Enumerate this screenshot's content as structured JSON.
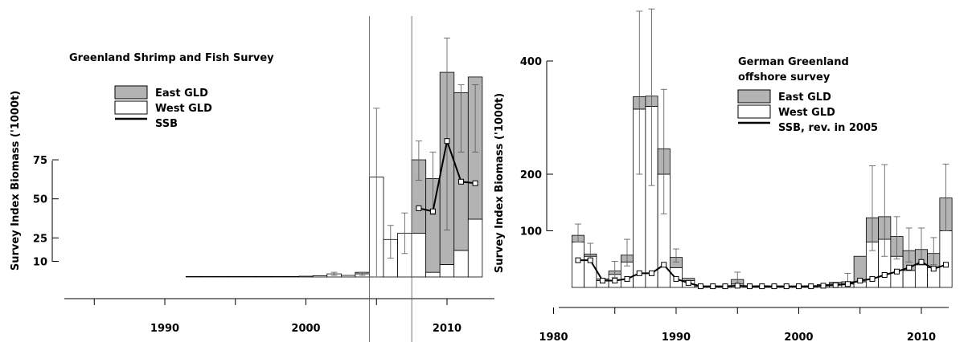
{
  "chart_data": [
    {
      "type": "bar",
      "stacked": true,
      "title": "Greenland Shrimp and Fish Survey",
      "ylabel": "Survey Index Biomass ('1000t)",
      "xlabel": "",
      "y_ticks": [
        10,
        25,
        50,
        75
      ],
      "x_ticks": [
        1990,
        2000,
        2010
      ],
      "xlim": [
        1983,
        2013
      ],
      "ylim": [
        0,
        140
      ],
      "legend": {
        "placement": "top-left",
        "entries": [
          {
            "label": "East GLD",
            "color": "#b3b3b3",
            "kind": "box"
          },
          {
            "label": "West GLD",
            "color": "#ffffff",
            "kind": "box"
          },
          {
            "label": "SSB",
            "color": "#000000",
            "kind": "line"
          }
        ]
      },
      "years": [
        1992,
        1993,
        1994,
        1995,
        1996,
        1997,
        1998,
        1999,
        2000,
        2001,
        2002,
        2003,
        2004,
        2005,
        2006,
        2007,
        2008,
        2009,
        2010,
        2011,
        2012
      ],
      "series": [
        {
          "name": "West GLD",
          "values": [
            0.3,
            0.3,
            0.3,
            0.3,
            0.3,
            0.3,
            0.3,
            0.3,
            0.5,
            0.8,
            2,
            1,
            2,
            64,
            24,
            28,
            28,
            3,
            8,
            17,
            37
          ]
        },
        {
          "name": "East GLD",
          "values": [
            0,
            0,
            0,
            0,
            0,
            0,
            0,
            0,
            0,
            0,
            0,
            0,
            1,
            0,
            0,
            0,
            47,
            60,
            123,
            101,
            91
          ]
        }
      ],
      "error_bars": [
        {
          "year": 2002,
          "low": 1,
          "high": 3
        },
        {
          "year": 2004,
          "low": 1,
          "high": 3
        },
        {
          "year": 2005,
          "low": 0,
          "high": 108
        },
        {
          "year": 2006,
          "low": 12,
          "high": 33
        },
        {
          "year": 2007,
          "low": 15,
          "high": 41
        },
        {
          "year": 2008,
          "low": 62,
          "high": 87
        },
        {
          "year": 2009,
          "low": 40,
          "high": 80
        },
        {
          "year": 2010,
          "low": 30,
          "high": 153
        },
        {
          "year": 2011,
          "low": 80,
          "high": 123
        },
        {
          "year": 2012,
          "low": 80,
          "high": 123
        }
      ],
      "ssb": {
        "x": [
          2008,
          2009,
          2010,
          2011,
          2012
        ],
        "y": [
          44,
          42,
          87,
          61,
          60
        ]
      },
      "ref_lines_x": [
        2004.5,
        2007.5
      ]
    },
    {
      "type": "bar",
      "stacked": true,
      "title": "German Greenland offshore survey",
      "title_lines": [
        "German Greenland",
        "offshore survey"
      ],
      "ylabel": "Survey Index Biomass ('1000t)",
      "xlabel": "",
      "y_ticks": [
        100,
        200,
        400
      ],
      "x_ticks": [
        1980,
        1990,
        2000,
        2010
      ],
      "xlim": [
        1980,
        2013
      ],
      "ylim": [
        0,
        450
      ],
      "legend": {
        "placement": "top-right",
        "entries": [
          {
            "label": "East GLD",
            "color": "#b3b3b3",
            "kind": "box"
          },
          {
            "label": "West GLD",
            "color": "#ffffff",
            "kind": "box"
          },
          {
            "label": "SSB, rev. in 2005",
            "color": "#000000",
            "kind": "line"
          }
        ]
      },
      "years": [
        1982,
        1983,
        1984,
        1985,
        1986,
        1987,
        1988,
        1989,
        1990,
        1991,
        1992,
        1993,
        1994,
        1995,
        1996,
        1997,
        1998,
        1999,
        2000,
        2001,
        2002,
        2003,
        2004,
        2005,
        2006,
        2007,
        2008,
        2009,
        2010,
        2011,
        2012
      ],
      "series": [
        {
          "name": "West GLD",
          "values": [
            80,
            55,
            12,
            23,
            45,
            315,
            320,
            200,
            35,
            12,
            2,
            2,
            2,
            6,
            2,
            3,
            2,
            2,
            2,
            3,
            3,
            6,
            6,
            10,
            80,
            85,
            55,
            30,
            40,
            35,
            100
          ]
        },
        {
          "name": "East GLD",
          "values": [
            12,
            4,
            3,
            6,
            12,
            22,
            18,
            45,
            18,
            4,
            0,
            0,
            0,
            8,
            0,
            0,
            0,
            0,
            0,
            0,
            2,
            3,
            4,
            45,
            43,
            40,
            35,
            35,
            27,
            25,
            58
          ]
        }
      ],
      "error_bars": [
        {
          "year": 1982,
          "low": 80,
          "high": 112
        },
        {
          "year": 1983,
          "low": 50,
          "high": 78
        },
        {
          "year": 1985,
          "low": 18,
          "high": 46
        },
        {
          "year": 1986,
          "low": 38,
          "high": 85
        },
        {
          "year": 1987,
          "low": 200,
          "high": 488
        },
        {
          "year": 1988,
          "low": 180,
          "high": 492
        },
        {
          "year": 1989,
          "low": 130,
          "high": 350
        },
        {
          "year": 1990,
          "low": 45,
          "high": 68
        },
        {
          "year": 1995,
          "low": 3,
          "high": 27
        },
        {
          "year": 2004,
          "low": 3,
          "high": 25
        },
        {
          "year": 2006,
          "low": 65,
          "high": 215
        },
        {
          "year": 2007,
          "low": 55,
          "high": 217
        },
        {
          "year": 2008,
          "low": 50,
          "high": 125
        },
        {
          "year": 2009,
          "low": 45,
          "high": 105
        },
        {
          "year": 2010,
          "low": 40,
          "high": 105
        },
        {
          "year": 2011,
          "low": 40,
          "high": 88
        },
        {
          "year": 2012,
          "low": 100,
          "high": 218
        }
      ],
      "ssb": {
        "x": [
          1982,
          1983,
          1984,
          1985,
          1986,
          1987,
          1988,
          1989,
          1990,
          1991,
          1992,
          1993,
          1994,
          1995,
          1996,
          1997,
          1998,
          1999,
          2000,
          2001,
          2002,
          2003,
          2004,
          2005,
          2006,
          2007,
          2008,
          2009,
          2010,
          2011,
          2012
        ],
        "y": [
          48,
          48,
          12,
          12,
          15,
          25,
          25,
          40,
          15,
          8,
          2,
          2,
          2,
          3,
          2,
          2,
          2,
          2,
          2,
          2,
          3,
          4,
          6,
          12,
          15,
          22,
          28,
          35,
          45,
          33,
          40
        ]
      }
    }
  ]
}
